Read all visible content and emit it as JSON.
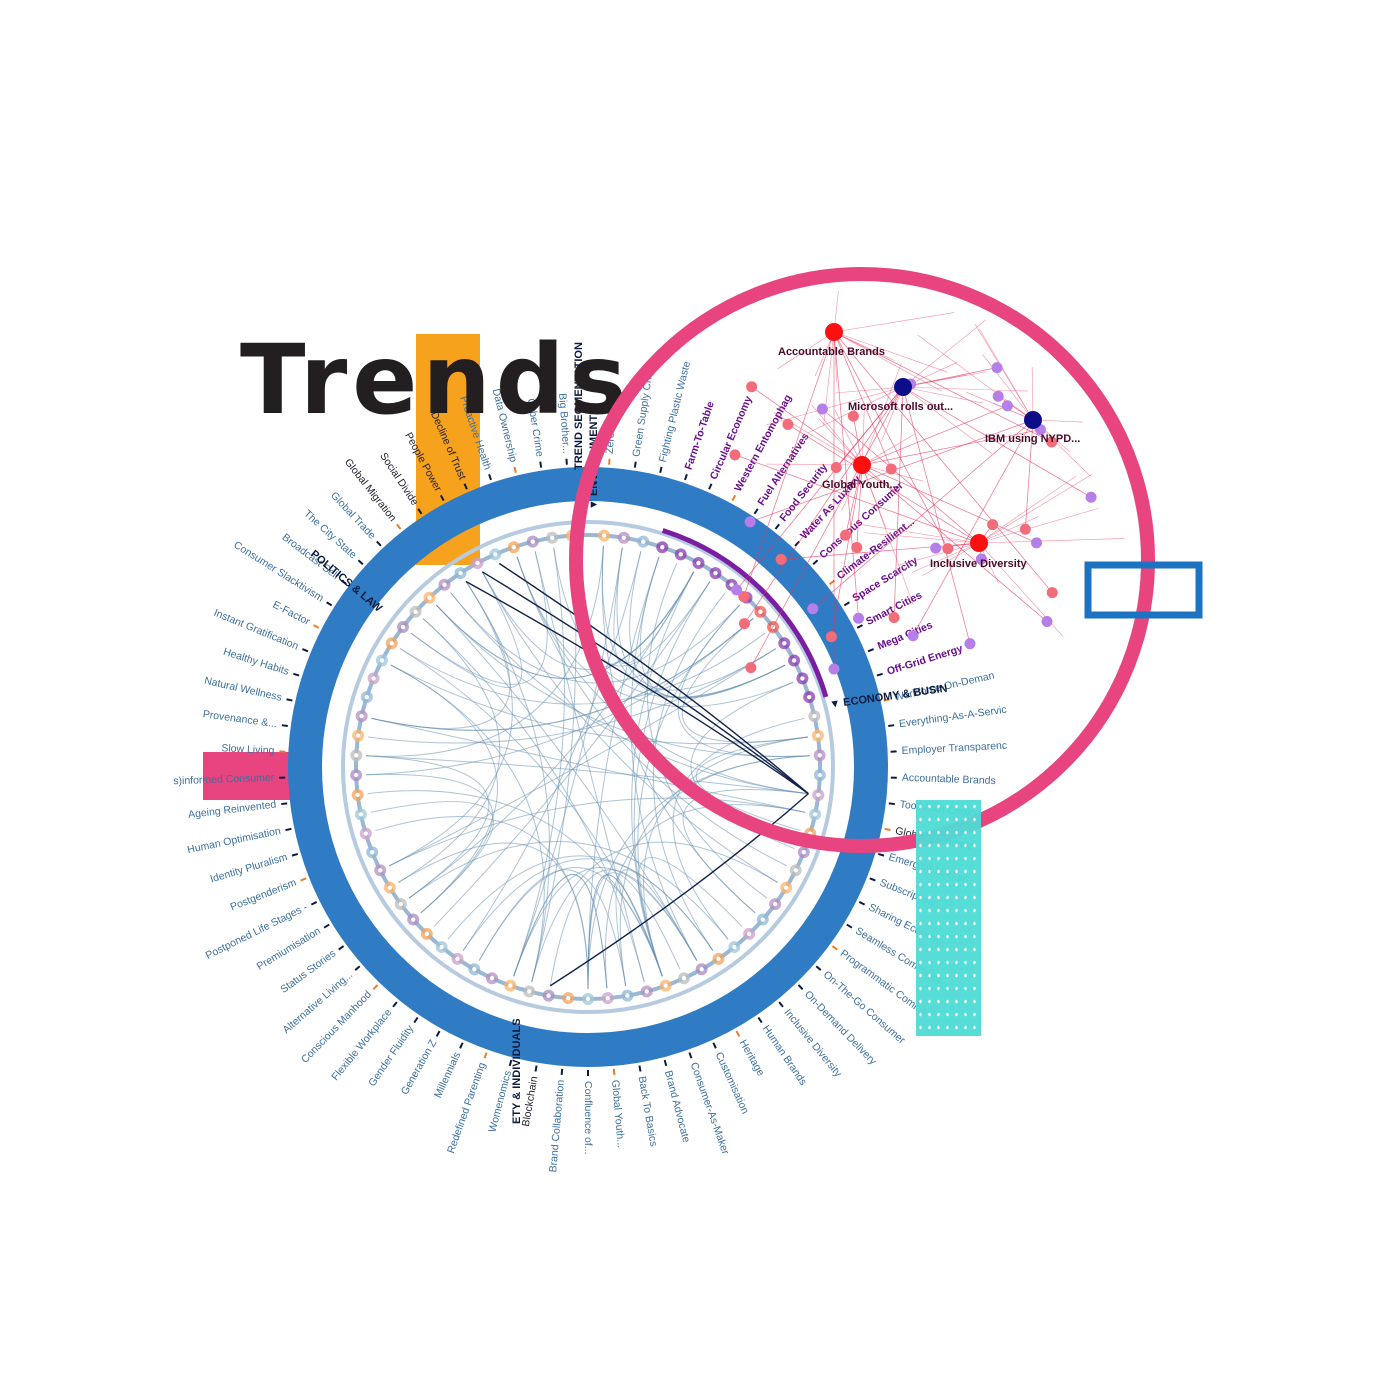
{
  "title": "Trends",
  "colors": {
    "ring": "#2f7bc4",
    "network_circle": "#e8447f",
    "orange_bar": "#f6a21c",
    "pink_bar": "#e8447f",
    "teal_bar": "#4fdcd6",
    "blue_box": "#1b73c2",
    "highlight": "#7a1fa2",
    "chord": "#6a92b4"
  },
  "diagram": {
    "categories": [
      {
        "label": "TREND SEGMENTATION"
      },
      {
        "label": "▼ ENVIRONMENT"
      },
      {
        "label": "▼ ECONOMY & BUSIN"
      },
      {
        "label": "ETY & INDIVIDUALS"
      },
      {
        "label": "POLITICS & LAW"
      }
    ],
    "trends": [
      {
        "label": "Zero Waste",
        "hl": false
      },
      {
        "label": "Green Supply Chain",
        "hl": false
      },
      {
        "label": "Fighting Plastic Waste",
        "hl": false
      },
      {
        "label": "Farm-To-Table",
        "hl": true
      },
      {
        "label": "Circular Economy",
        "hl": true
      },
      {
        "label": "Western Entomophag",
        "hl": true
      },
      {
        "label": "Fuel Alternatives",
        "hl": true
      },
      {
        "label": "Food Security",
        "hl": true
      },
      {
        "label": "Water As Luxury",
        "hl": true
      },
      {
        "label": "Conscious Consumer",
        "hl": true
      },
      {
        "label": "Climate-Resilient...",
        "hl": true
      },
      {
        "label": "Space Scarcity",
        "hl": true
      },
      {
        "label": "Smart Cities",
        "hl": true
      },
      {
        "label": "Mega Cities",
        "hl": true
      },
      {
        "label": "Off-Grid Energy",
        "hl": true
      },
      {
        "label": "Workforce-On-Deman",
        "hl": false
      },
      {
        "label": "Everything-As-A-Servic",
        "hl": false
      },
      {
        "label": "Employer Transparenc",
        "hl": false
      },
      {
        "label": "Accountable Brands",
        "hl": false
      },
      {
        "label": "Too Much Choice",
        "hl": false
      },
      {
        "label": "Global Economic...",
        "hl": false,
        "dark": true
      },
      {
        "label": "Emerging Market...",
        "hl": false
      },
      {
        "label": "Subscription...",
        "hl": false
      },
      {
        "label": "Sharing Economy",
        "hl": false
      },
      {
        "label": "Seamless Commerce",
        "hl": false
      },
      {
        "label": "Programmatic Comme",
        "hl": false
      },
      {
        "label": "On-The-Go Consumer",
        "hl": false
      },
      {
        "label": "On-Demand Delivery",
        "hl": false
      },
      {
        "label": "Inclusive Diversity",
        "hl": false
      },
      {
        "label": "Human Brands",
        "hl": false
      },
      {
        "label": "Heritage",
        "hl": false
      },
      {
        "label": "Customisation",
        "hl": false
      },
      {
        "label": "Consumer-As-Maker",
        "hl": false
      },
      {
        "label": "Brand Advocate",
        "hl": false
      },
      {
        "label": "Back To Basics",
        "hl": false
      },
      {
        "label": "Global Youth...",
        "hl": false
      },
      {
        "label": "Confluence of...",
        "hl": false
      },
      {
        "label": "Brand Collaboration",
        "hl": false
      },
      {
        "label": "Blockchain",
        "hl": false,
        "dark": true
      },
      {
        "label": "Womenomics",
        "hl": false
      },
      {
        "label": "Redefined Parenting",
        "hl": false
      },
      {
        "label": "Millennials",
        "hl": false
      },
      {
        "label": "Generation Z",
        "hl": false
      },
      {
        "label": "Gender Fluidity",
        "hl": false
      },
      {
        "label": "Flexible Workplace",
        "hl": false
      },
      {
        "label": "Conscious Manhood",
        "hl": false
      },
      {
        "label": "Alternative Living...",
        "hl": false
      },
      {
        "label": "Status Stories",
        "hl": false
      },
      {
        "label": "Premiumisation",
        "hl": false
      },
      {
        "label": "Postponed Life Stages -",
        "hl": false
      },
      {
        "label": "Postgenderism",
        "hl": false
      },
      {
        "label": "Identity Pluralism",
        "hl": false
      },
      {
        "label": "Human Optimisation",
        "hl": false
      },
      {
        "label": "Ageing Reinvented",
        "hl": false
      },
      {
        "label": "s)informed Consumer",
        "hl": false
      },
      {
        "label": "Slow Living",
        "hl": false
      },
      {
        "label": "Provenance &...",
        "hl": false
      },
      {
        "label": "Natural Wellness",
        "hl": false
      },
      {
        "label": "Healthy Habits",
        "hl": false
      },
      {
        "label": "Instant Gratification",
        "hl": false
      },
      {
        "label": "E-Factor",
        "hl": false
      },
      {
        "label": "Consumer Slacktivism",
        "hl": false
      },
      {
        "label": "Broadcast Self",
        "hl": false
      },
      {
        "label": "The City State",
        "hl": false
      },
      {
        "label": "Global Trade",
        "hl": false
      },
      {
        "label": "Global Migration",
        "hl": false,
        "dark": true
      },
      {
        "label": "Social Divide",
        "hl": false,
        "dark": true
      },
      {
        "label": "People Power",
        "hl": false,
        "dark": true
      },
      {
        "label": "Decline of Trust",
        "hl": false,
        "dark": true
      },
      {
        "label": "Proactive Health",
        "hl": false
      },
      {
        "label": "Data Ownership",
        "hl": false
      },
      {
        "label": "Cyber Crime",
        "hl": false
      },
      {
        "label": "Big Brother...",
        "hl": false
      }
    ]
  },
  "network": {
    "labels": [
      "Accountable Brands",
      "Microsoft rolls out...",
      "IBM using NYPD...",
      "Global Youth...",
      "Inclusive Diversity"
    ]
  }
}
